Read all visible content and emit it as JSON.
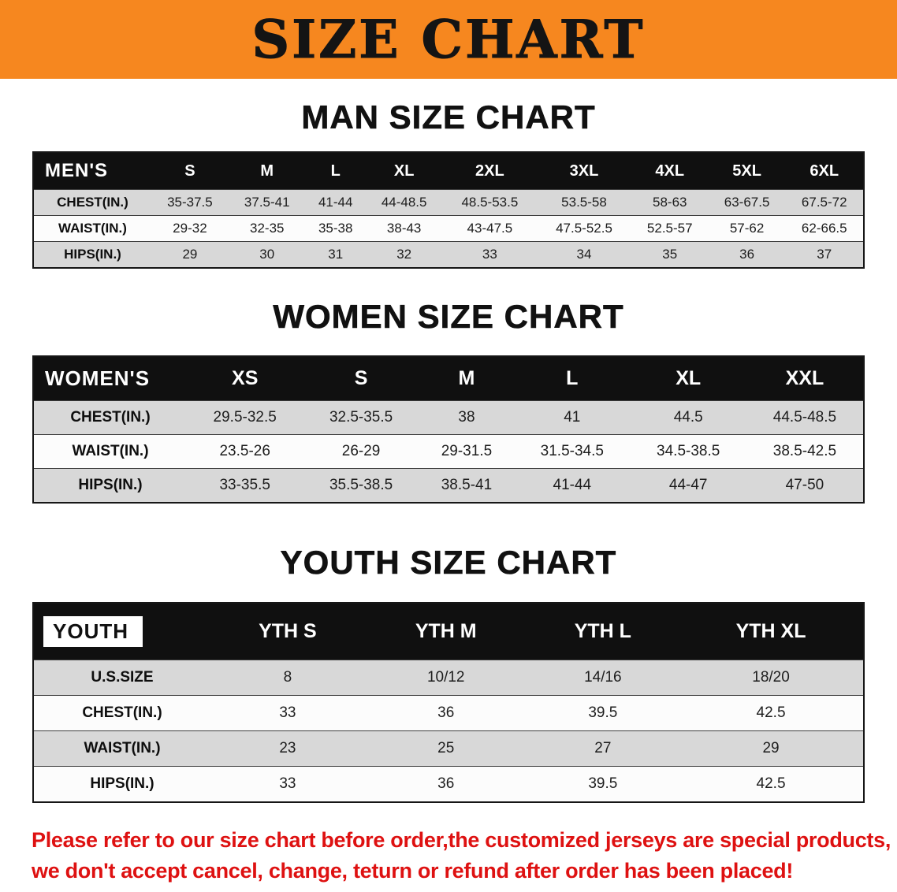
{
  "banner": {
    "title": "SIZE CHART",
    "bg_color": "#F6871F",
    "text_color": "#141414"
  },
  "chart_data": [
    {
      "type": "table",
      "title": "MAN SIZE CHART",
      "header_label": "MEN'S",
      "columns": [
        "S",
        "M",
        "L",
        "XL",
        "2XL",
        "3XL",
        "4XL",
        "5XL",
        "6XL"
      ],
      "rows": [
        {
          "label": "CHEST(IN.)",
          "values": [
            "35-37.5",
            "37.5-41",
            "41-44",
            "44-48.5",
            "48.5-53.5",
            "53.5-58",
            "58-63",
            "63-67.5",
            "67.5-72"
          ]
        },
        {
          "label": "WAIST(IN.)",
          "values": [
            "29-32",
            "32-35",
            "35-38",
            "38-43",
            "43-47.5",
            "47.5-52.5",
            "52.5-57",
            "57-62",
            "62-66.5"
          ]
        },
        {
          "label": "HIPS(IN.)",
          "values": [
            "29",
            "30",
            "31",
            "32",
            "33",
            "34",
            "35",
            "36",
            "37"
          ]
        }
      ]
    },
    {
      "type": "table",
      "title": "WOMEN SIZE CHART",
      "header_label": "WOMEN'S",
      "columns": [
        "XS",
        "S",
        "M",
        "L",
        "XL",
        "XXL"
      ],
      "rows": [
        {
          "label": "CHEST(IN.)",
          "values": [
            "29.5-32.5",
            "32.5-35.5",
            "38",
            "41",
            "44.5",
            "44.5-48.5"
          ]
        },
        {
          "label": "WAIST(IN.)",
          "values": [
            "23.5-26",
            "26-29",
            "29-31.5",
            "31.5-34.5",
            "34.5-38.5",
            "38.5-42.5"
          ]
        },
        {
          "label": "HIPS(IN.)",
          "values": [
            "33-35.5",
            "35.5-38.5",
            "38.5-41",
            "41-44",
            "44-47",
            "47-50"
          ]
        }
      ]
    },
    {
      "type": "table",
      "title": "YOUTH SIZE CHART",
      "header_label": "YOUTH",
      "columns": [
        "YTH S",
        "YTH M",
        "YTH L",
        "YTH XL"
      ],
      "rows": [
        {
          "label": "U.S.SIZE",
          "values": [
            "8",
            "10/12",
            "14/16",
            "18/20"
          ]
        },
        {
          "label": "CHEST(IN.)",
          "values": [
            "33",
            "36",
            "39.5",
            "42.5"
          ]
        },
        {
          "label": "WAIST(IN.)",
          "values": [
            "23",
            "25",
            "27",
            "29"
          ]
        },
        {
          "label": "HIPS(IN.)",
          "values": [
            "33",
            "36",
            "39.5",
            "42.5"
          ]
        }
      ]
    }
  ],
  "footer": {
    "line1": "Please refer to our size chart before order,the customized jerseys are special products,",
    "line2": "we don't accept cancel, change, teturn or refund after order has been placed!",
    "text_color": "#DE1111"
  }
}
